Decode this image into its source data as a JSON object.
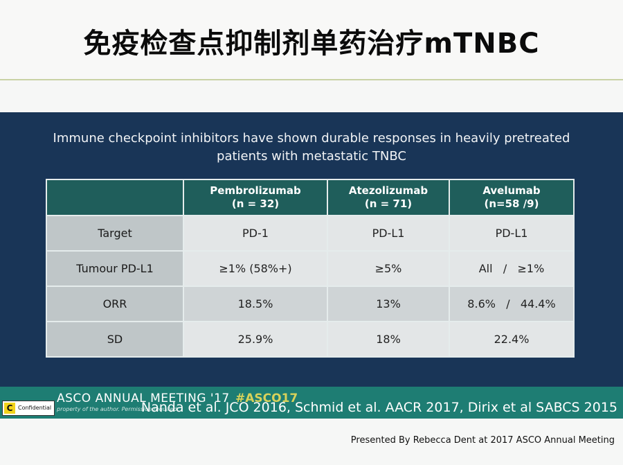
{
  "slide": {
    "title": "免疫检查点抑制剂单药治疗mTNBC",
    "subtitle": "Immune checkpoint inhibitors have shown durable responses in heavily pretreated patients with metastatic TNBC"
  },
  "table": {
    "corner": "",
    "columns": [
      {
        "name": "Pembrolizumab",
        "n": "(n = 32)"
      },
      {
        "name": "Atezolizumab",
        "n": "(n = 71)"
      },
      {
        "name": "Avelumab",
        "n": "(n=58 /9)"
      }
    ],
    "rows": [
      {
        "label": "Target",
        "values": [
          "PD-1",
          "PD-L1",
          "PD-L1"
        ]
      },
      {
        "label": "Tumour PD-L1",
        "values": [
          "≥1% (58%+)",
          "≥5%",
          "All   /   ≥1%"
        ]
      },
      {
        "label": "ORR",
        "values": [
          "18.5%",
          "13%",
          "8.6%   /   44.4%"
        ]
      },
      {
        "label": "SD",
        "values": [
          "25.9%",
          "18%",
          "22.4%"
        ]
      }
    ]
  },
  "footer": {
    "meeting": "ASCO ANNUAL MEETING '17",
    "hashtag": "#ASCO17",
    "disclaimer": "property of the author. Permission required",
    "references": "Nanda et al. JCO 2016, Schmid et al. AACR 2017, Dirix et al SABCS 2015",
    "badge_letter": "C",
    "badge_label": "Confidential"
  },
  "presenter": "Presented By Rebecca Dent at 2017 ASCO Annual Meeting",
  "colors": {
    "panel_bg": "#193557",
    "header_bg": "#1f5e5b",
    "footer_band": "#1e7d73",
    "hashtag": "#d8d25a"
  }
}
